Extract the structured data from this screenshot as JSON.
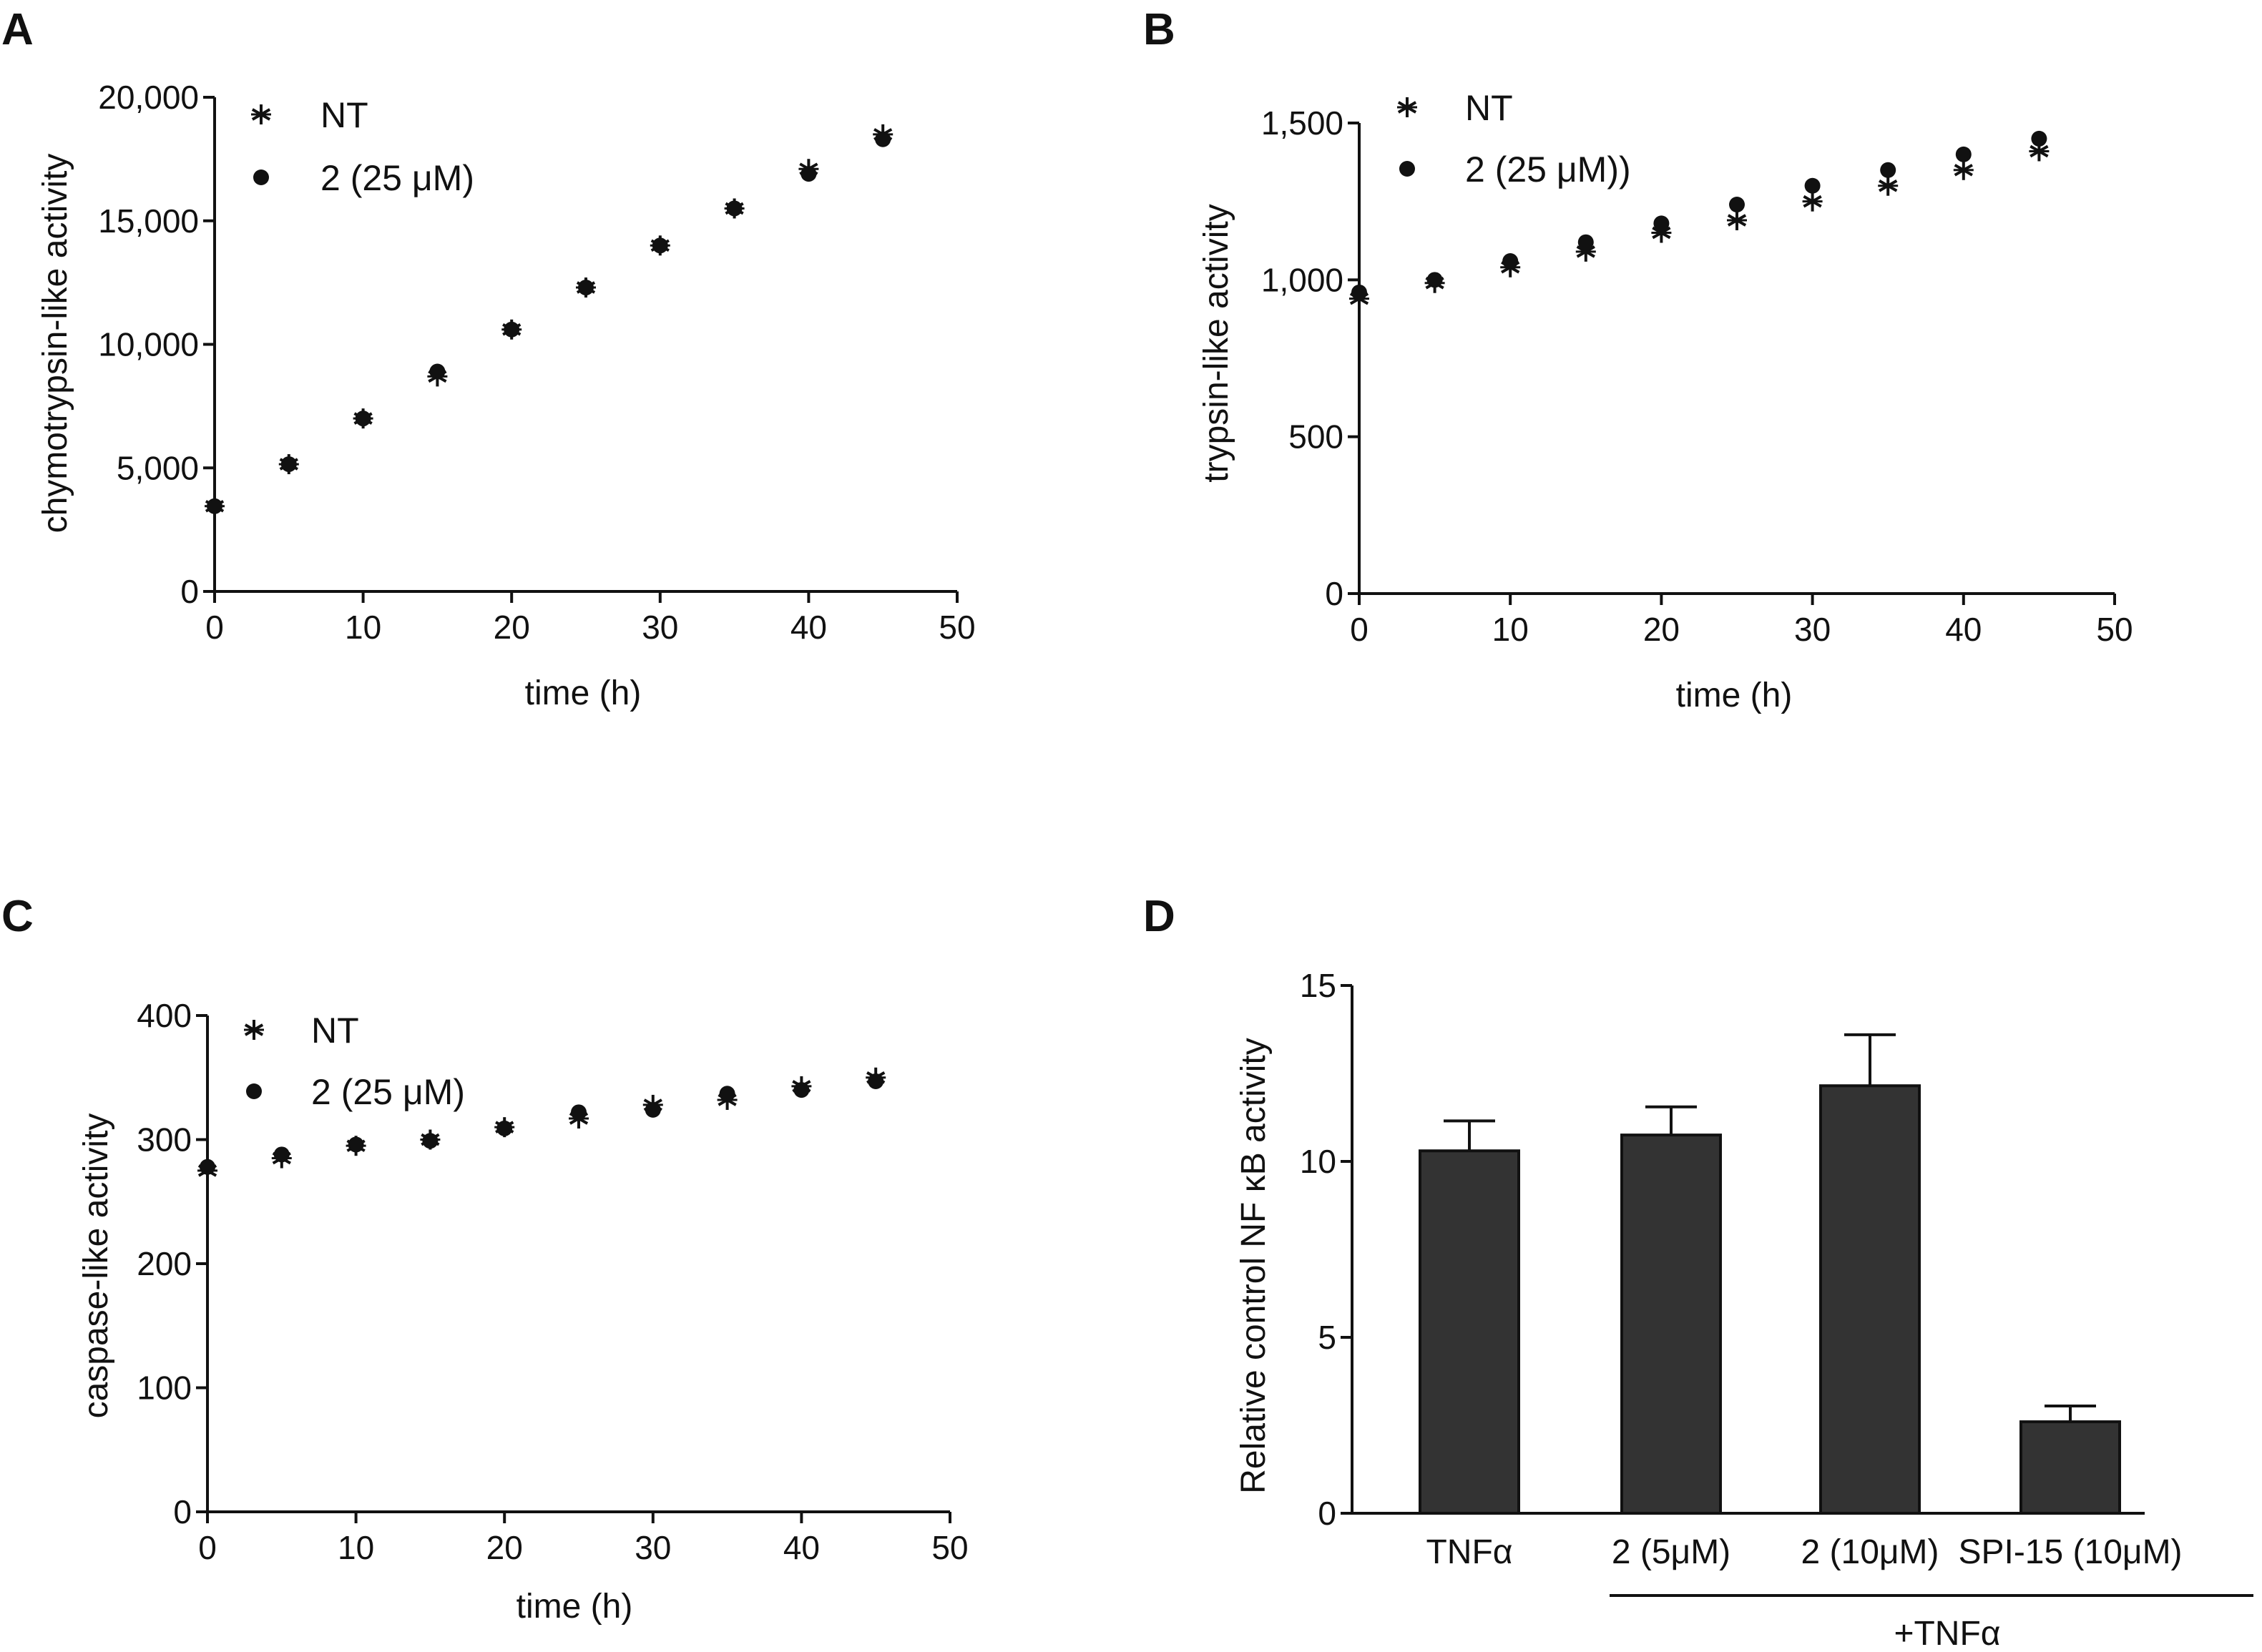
{
  "chart_data": [
    {
      "id": "A",
      "panel_label": "A",
      "type": "scatter",
      "xlabel": "time (h)",
      "ylabel": "chymotrypsin-like activity",
      "xlim": [
        0,
        50
      ],
      "ylim": [
        0,
        20000
      ],
      "xticks": [
        0,
        10,
        20,
        30,
        40,
        50
      ],
      "xtick_labels": [
        "0",
        "10",
        "20",
        "30",
        "40",
        "50"
      ],
      "yticks": [
        0,
        5000,
        10000,
        15000,
        20000
      ],
      "ytick_labels": [
        "0",
        "5,000",
        "10,000",
        "15,000",
        "20,000"
      ],
      "grid": false,
      "legend_position": "top-left",
      "series": [
        {
          "name": "NT",
          "marker": "asterisk",
          "x": [
            0,
            5,
            10,
            15,
            20,
            25,
            30,
            35,
            40,
            45
          ],
          "y": [
            3450,
            5150,
            7000,
            8700,
            10600,
            12300,
            14000,
            15500,
            17100,
            18500
          ]
        },
        {
          "name": "2 (25 μM)",
          "marker": "circle",
          "x": [
            0,
            5,
            10,
            15,
            20,
            25,
            30,
            35,
            40,
            45
          ],
          "y": [
            3450,
            5150,
            7000,
            8900,
            10600,
            12300,
            14000,
            15500,
            16900,
            18300
          ]
        }
      ]
    },
    {
      "id": "B",
      "panel_label": "B",
      "type": "scatter",
      "xlabel": "time (h)",
      "ylabel": "trypsin-like activity",
      "xlim": [
        0,
        50
      ],
      "ylim": [
        0,
        1500
      ],
      "xticks": [
        0,
        10,
        20,
        30,
        40,
        50
      ],
      "xtick_labels": [
        "0",
        "10",
        "20",
        "30",
        "40",
        "50"
      ],
      "yticks": [
        0,
        500,
        1000,
        1500
      ],
      "ytick_labels": [
        "0",
        "500",
        "1,000",
        "1,500"
      ],
      "grid": false,
      "legend_position": "top-left",
      "series": [
        {
          "name": "NT",
          "marker": "asterisk",
          "x": [
            0,
            5,
            10,
            15,
            20,
            25,
            30,
            35,
            40,
            45
          ],
          "y": [
            940,
            990,
            1040,
            1090,
            1150,
            1190,
            1250,
            1300,
            1350,
            1410
          ]
        },
        {
          "name": "2 (25 μM))",
          "marker": "circle",
          "x": [
            0,
            5,
            10,
            15,
            20,
            25,
            30,
            35,
            40,
            45
          ],
          "y": [
            960,
            1000,
            1060,
            1120,
            1180,
            1240,
            1300,
            1350,
            1400,
            1450
          ]
        }
      ]
    },
    {
      "id": "C",
      "panel_label": "C",
      "type": "scatter",
      "xlabel": "time (h)",
      "ylabel": "caspase-like activity",
      "xlim": [
        0,
        50
      ],
      "ylim": [
        0,
        400
      ],
      "xticks": [
        0,
        10,
        20,
        30,
        40,
        50
      ],
      "xtick_labels": [
        "0",
        "10",
        "20",
        "30",
        "40",
        "50"
      ],
      "yticks": [
        0,
        100,
        200,
        300,
        400
      ],
      "ytick_labels": [
        "0",
        "100",
        "200",
        "300",
        "400"
      ],
      "grid": false,
      "legend_position": "top-left",
      "series": [
        {
          "name": "NT",
          "marker": "asterisk",
          "x": [
            0,
            5,
            10,
            15,
            20,
            25,
            30,
            35,
            40,
            45
          ],
          "y": [
            275,
            285,
            295,
            300,
            310,
            317,
            328,
            332,
            343,
            350
          ]
        },
        {
          "name": "2 (25 μM)",
          "marker": "circle",
          "x": [
            0,
            5,
            10,
            15,
            20,
            25,
            30,
            35,
            40,
            45
          ],
          "y": [
            278,
            288,
            296,
            299,
            309,
            322,
            324,
            337,
            340,
            347
          ]
        }
      ]
    },
    {
      "id": "D",
      "panel_label": "D",
      "type": "bar",
      "ylabel": "Relative control NF κB activity",
      "xlabel": "",
      "ylim": [
        0,
        15
      ],
      "yticks": [
        0,
        5,
        10,
        15
      ],
      "ytick_labels": [
        "0",
        "5",
        "10",
        "15"
      ],
      "grid": false,
      "categories": [
        "TNFα",
        "2 (5μM)",
        "2 (10μM)",
        "SPI-15 (10μM)"
      ],
      "values": [
        10.3,
        10.75,
        12.15,
        2.6
      ],
      "errors": [
        0.85,
        0.8,
        1.45,
        0.45
      ],
      "bar_color": "#333333",
      "group_bracket_label": "+TNFα",
      "group_bracket_spans": [
        "2 (5μM)",
        "SPI-15 (10μM)"
      ]
    }
  ]
}
